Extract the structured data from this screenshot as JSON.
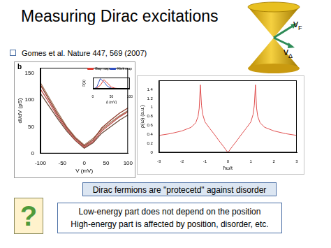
{
  "slide": {
    "title": "Measuring Dirac excitations",
    "citation": "Gomes et al. Nature 447, 569 (2007)",
    "panel_label": "b",
    "cone_labels": [
      {
        "text": "v",
        "subscript": "F"
      },
      {
        "text": "v",
        "subscript": "Δ"
      }
    ],
    "statement": "Dirac fermions are \"protecetd\" against disorder",
    "question_mark": "?",
    "notes": [
      "Low-energy part does not depend on the position",
      "High-energy part is affected by position, disorder, etc."
    ]
  },
  "chart_data": [
    {
      "type": "line",
      "x_label": "V (mV)",
      "y_label": "dI/dV (pS)",
      "x": [
        -100,
        -80,
        -60,
        -40,
        -20,
        0,
        20,
        40,
        60,
        80,
        100
      ],
      "series": [
        {
          "color": "#8b3a2a",
          "values": [
            128,
            100,
            72,
            48,
            28,
            14,
            25,
            48,
            62,
            75,
            85
          ]
        },
        {
          "color": "#c0504d",
          "values": [
            120,
            95,
            68,
            45,
            25,
            12,
            22,
            42,
            55,
            68,
            78
          ]
        },
        {
          "color": "#6b4a3a",
          "values": [
            112,
            88,
            64,
            42,
            24,
            10,
            20,
            38,
            50,
            62,
            72
          ]
        },
        {
          "color": "#a0745a",
          "values": [
            132,
            104,
            76,
            50,
            30,
            16,
            28,
            45,
            58,
            70,
            80
          ]
        }
      ],
      "xlim": [
        -100,
        100
      ],
      "xticks": [
        -100,
        -50,
        0,
        50,
        100
      ],
      "ylim": [
        0,
        160
      ],
      "yticks": [
        0,
        50,
        100,
        150
      ],
      "grid": false
    },
    {
      "type": "line",
      "x_label": "Δ (mV)",
      "y_label": "P(Δ)",
      "x": [
        0,
        10,
        20,
        30,
        40,
        50,
        60,
        70,
        80,
        90,
        100
      ],
      "series": [
        {
          "name": "Gap map",
          "color": "#e03c31",
          "values": [
            0,
            0.05,
            0.3,
            0.8,
            0.5,
            0.15,
            0.05,
            0.02,
            0,
            0,
            0
          ]
        },
        {
          "name": "Kink map",
          "color": "#3050c0",
          "values": [
            0,
            0.1,
            0.9,
            0.6,
            0.2,
            0.05,
            0,
            0,
            0,
            0,
            0
          ]
        }
      ],
      "xlim": [
        0,
        100
      ],
      "xticks": [
        0,
        50,
        100
      ],
      "ylim": [
        0,
        1
      ],
      "yticks": [],
      "legend": "upper right",
      "tick_labels": "x",
      "grid": false
    },
    {
      "type": "line",
      "x_label": "ħω/t",
      "y_label": "ρ(ω) (a.u.)",
      "x": [
        -3,
        -2.5,
        -2,
        -1.6,
        -1.4,
        -1.3,
        -1.25,
        -1.2,
        -1.15,
        -1.1,
        -1,
        -0.8,
        -0.6,
        -0.4,
        -0.2,
        0,
        0.2,
        0.4,
        0.6,
        0.8,
        1,
        1.1,
        1.15,
        1.2,
        1.25,
        1.3,
        1.4,
        1.6,
        2,
        2.5,
        3
      ],
      "series": [
        {
          "color": "#e05050",
          "values": [
            0.38,
            0.42,
            0.48,
            0.56,
            0.66,
            0.8,
            0.98,
            1.5,
            1.05,
            0.85,
            0.68,
            0.54,
            0.41,
            0.27,
            0.14,
            0,
            0.14,
            0.27,
            0.41,
            0.54,
            0.68,
            0.85,
            1.05,
            1.5,
            0.98,
            0.8,
            0.66,
            0.56,
            0.48,
            0.42,
            0.38
          ]
        }
      ],
      "xlim": [
        -3,
        3
      ],
      "xticks": [
        -3,
        -2,
        -1,
        0,
        1,
        2,
        3
      ],
      "ylim": [
        0,
        1.6
      ],
      "yticks": [
        0,
        0.2,
        0.4,
        0.6,
        0.8,
        1,
        1.2,
        1.4
      ],
      "grid": false
    }
  ]
}
